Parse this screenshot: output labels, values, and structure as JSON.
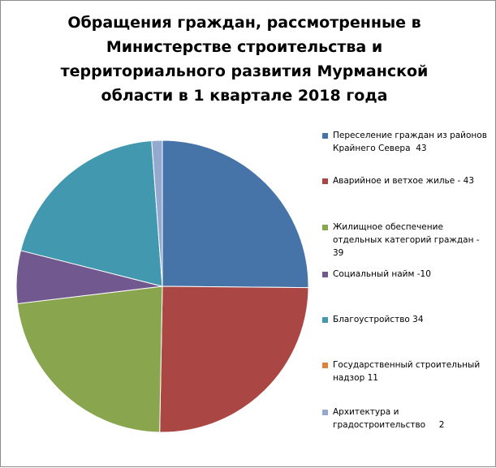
{
  "chart_data": {
    "type": "pie",
    "title_lines": [
      "Обращения граждан, рассмотренные в",
      "Министерстве строительства и",
      "территориального развития Мурманской",
      "области в 1 квартале 2018 года"
    ],
    "legend_position": "right",
    "slices": [
      {
        "label": "Переселение граждан из районов Крайнего Севера  43",
        "value": 43,
        "color": "#4673a8"
      },
      {
        "label": "Аварийное и ветхое жилье - 43",
        "value": 43,
        "color": "#aa4643"
      },
      {
        "label": "Жилищное обеспечение отдельных категорий граждан - 39",
        "value": 39,
        "color": "#89a54e"
      },
      {
        "label": "Социальный найм -10",
        "value": 10,
        "color": "#71588f"
      },
      {
        "label": "Благоустройство 34",
        "value": 34,
        "color": "#4198af"
      },
      {
        "label": "Государственный строительный надзор 11",
        "value": 11,
        "color": "#db843d"
      },
      {
        "label": "Архитектура и градостроительство     2",
        "value": 2,
        "color": "#93a9cf"
      }
    ],
    "drawn_slice_order": [
      0,
      1,
      2,
      3,
      4,
      6
    ]
  }
}
